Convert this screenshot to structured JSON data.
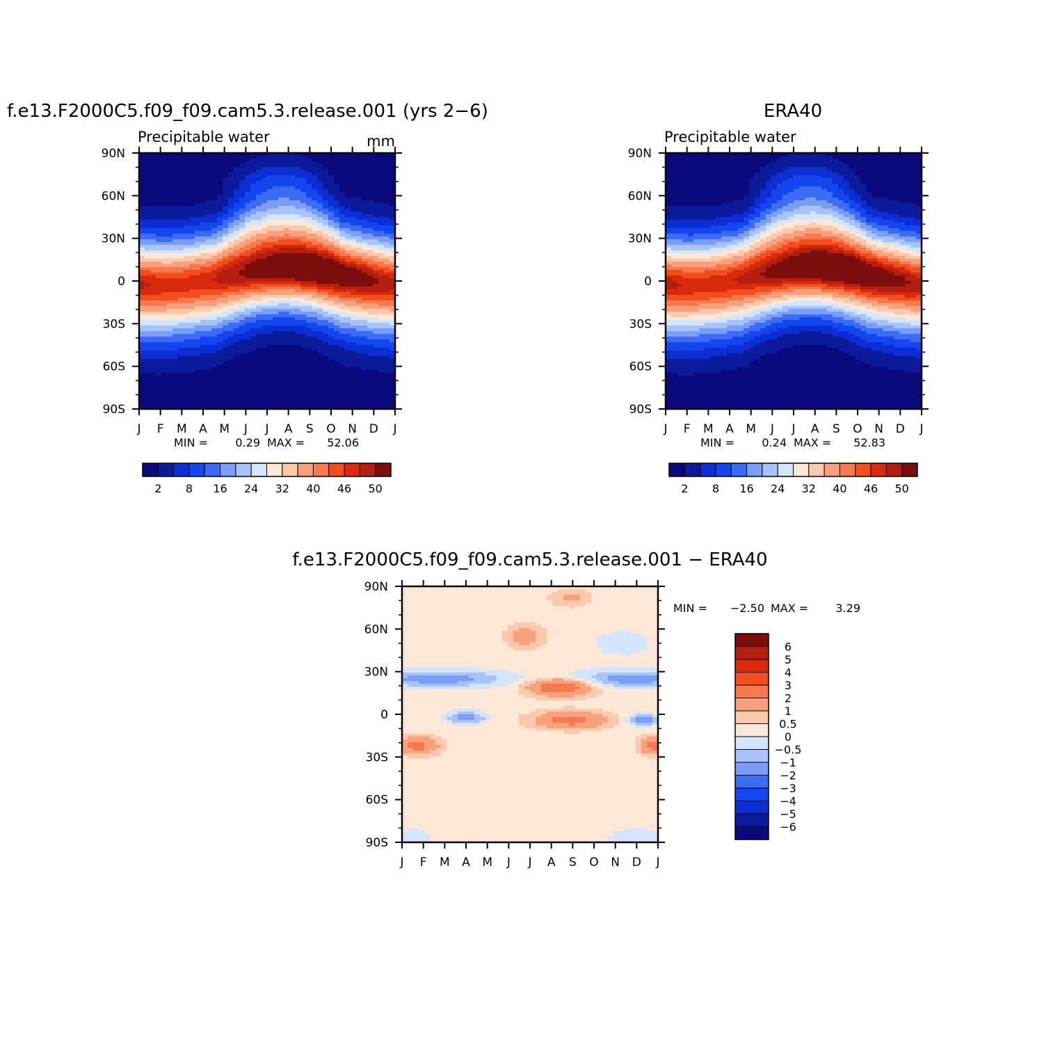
{
  "figure": {
    "title": "Precipitable water"
  },
  "chart_data": [
    {
      "type": "heatmap",
      "title": "f.e13.F2000C5.f09_f09.cam5.3.release.001 (yrs 2−6)",
      "subtitle": "Precipitable water",
      "units": "mm",
      "x_tick_labels": [
        "J",
        "F",
        "M",
        "A",
        "M",
        "J",
        "J",
        "A",
        "S",
        "O",
        "N",
        "D",
        "J"
      ],
      "y_tick_labels": [
        "90N",
        "60N",
        "30N",
        "0",
        "30S",
        "60S",
        "90S"
      ],
      "ylim": [
        -90,
        90
      ],
      "stats": {
        "min_label": "MIN =",
        "min": "0.29",
        "max_label": "MAX =",
        "max": "52.06"
      },
      "colorbar": {
        "levels": [
          2,
          5,
          8,
          12,
          16,
          20,
          24,
          28,
          32,
          36,
          40,
          43,
          46,
          48,
          50
        ],
        "labels": [
          "2",
          "8",
          "16",
          "24",
          "32",
          "40",
          "46",
          "50"
        ],
        "colors": [
          "#0a0a7c",
          "#0c1a9c",
          "#0a2dd4",
          "#1446f0",
          "#3a6cf5",
          "#7a9ef7",
          "#a8c2fa",
          "#d2e5fb",
          "#fde8d8",
          "#fcc9ad",
          "#f9a07c",
          "#f77a4f",
          "#f24f1c",
          "#d92a0e",
          "#b31e0f",
          "#7d0c0c"
        ]
      },
      "field_min": 0.29,
      "field_max": 52.06
    },
    {
      "type": "heatmap",
      "title": "ERA40",
      "subtitle": "Precipitable water",
      "x_tick_labels": [
        "J",
        "F",
        "M",
        "A",
        "M",
        "J",
        "J",
        "A",
        "S",
        "O",
        "N",
        "D",
        "J"
      ],
      "y_tick_labels": [
        "90N",
        "60N",
        "30N",
        "0",
        "30S",
        "60S",
        "90S"
      ],
      "ylim": [
        -90,
        90
      ],
      "stats": {
        "min_label": "MIN =",
        "min": "0.24",
        "max_label": "MAX =",
        "max": "52.83"
      },
      "colorbar": {
        "levels": [
          2,
          5,
          8,
          12,
          16,
          20,
          24,
          28,
          32,
          36,
          40,
          43,
          46,
          48,
          50
        ],
        "labels": [
          "2",
          "8",
          "16",
          "24",
          "32",
          "40",
          "46",
          "50"
        ],
        "colors": [
          "#0a0a7c",
          "#0c1a9c",
          "#0a2dd4",
          "#1446f0",
          "#3a6cf5",
          "#7a9ef7",
          "#a8c2fa",
          "#d2e5fb",
          "#fde8d8",
          "#fcc9ad",
          "#f9a07c",
          "#f77a4f",
          "#f24f1c",
          "#d92a0e",
          "#b31e0f",
          "#7d0c0c"
        ]
      },
      "field_min": 0.24,
      "field_max": 52.83
    },
    {
      "type": "heatmap",
      "title": "f.e13.F2000C5.f09_f09.cam5.3.release.001 − ERA40",
      "x_tick_labels": [
        "J",
        "F",
        "M",
        "A",
        "M",
        "J",
        "J",
        "A",
        "S",
        "O",
        "N",
        "D",
        "J"
      ],
      "y_tick_labels": [
        "90N",
        "60N",
        "30N",
        "0",
        "30S",
        "60S",
        "90S"
      ],
      "ylim": [
        -90,
        90
      ],
      "stats": {
        "min_label": "MIN =",
        "min": "−2.50",
        "max_label": "MAX =",
        "max": "3.29"
      },
      "colorbar": {
        "levels": [
          -6,
          -5,
          -4,
          -3,
          -2,
          -1,
          -0.5,
          0,
          0.5,
          1,
          2,
          3,
          4,
          5,
          6
        ],
        "labels": [
          "6",
          "5",
          "4",
          "3",
          "2",
          "1",
          "0.5",
          "0",
          "−0.5",
          "−1",
          "−2",
          "−3",
          "−4",
          "−5",
          "−6"
        ],
        "colors": [
          "#0a0a7c",
          "#0c1a9c",
          "#0a2dd4",
          "#1446f0",
          "#3a6cf5",
          "#7a9ef7",
          "#a8c2fa",
          "#d2e5fb",
          "#fde8d8",
          "#fcc9ad",
          "#f9a07c",
          "#f77a4f",
          "#f24f1c",
          "#d92a0e",
          "#b31e0f",
          "#7d0c0c"
        ]
      },
      "field_min": -2.5,
      "field_max": 3.29
    }
  ]
}
